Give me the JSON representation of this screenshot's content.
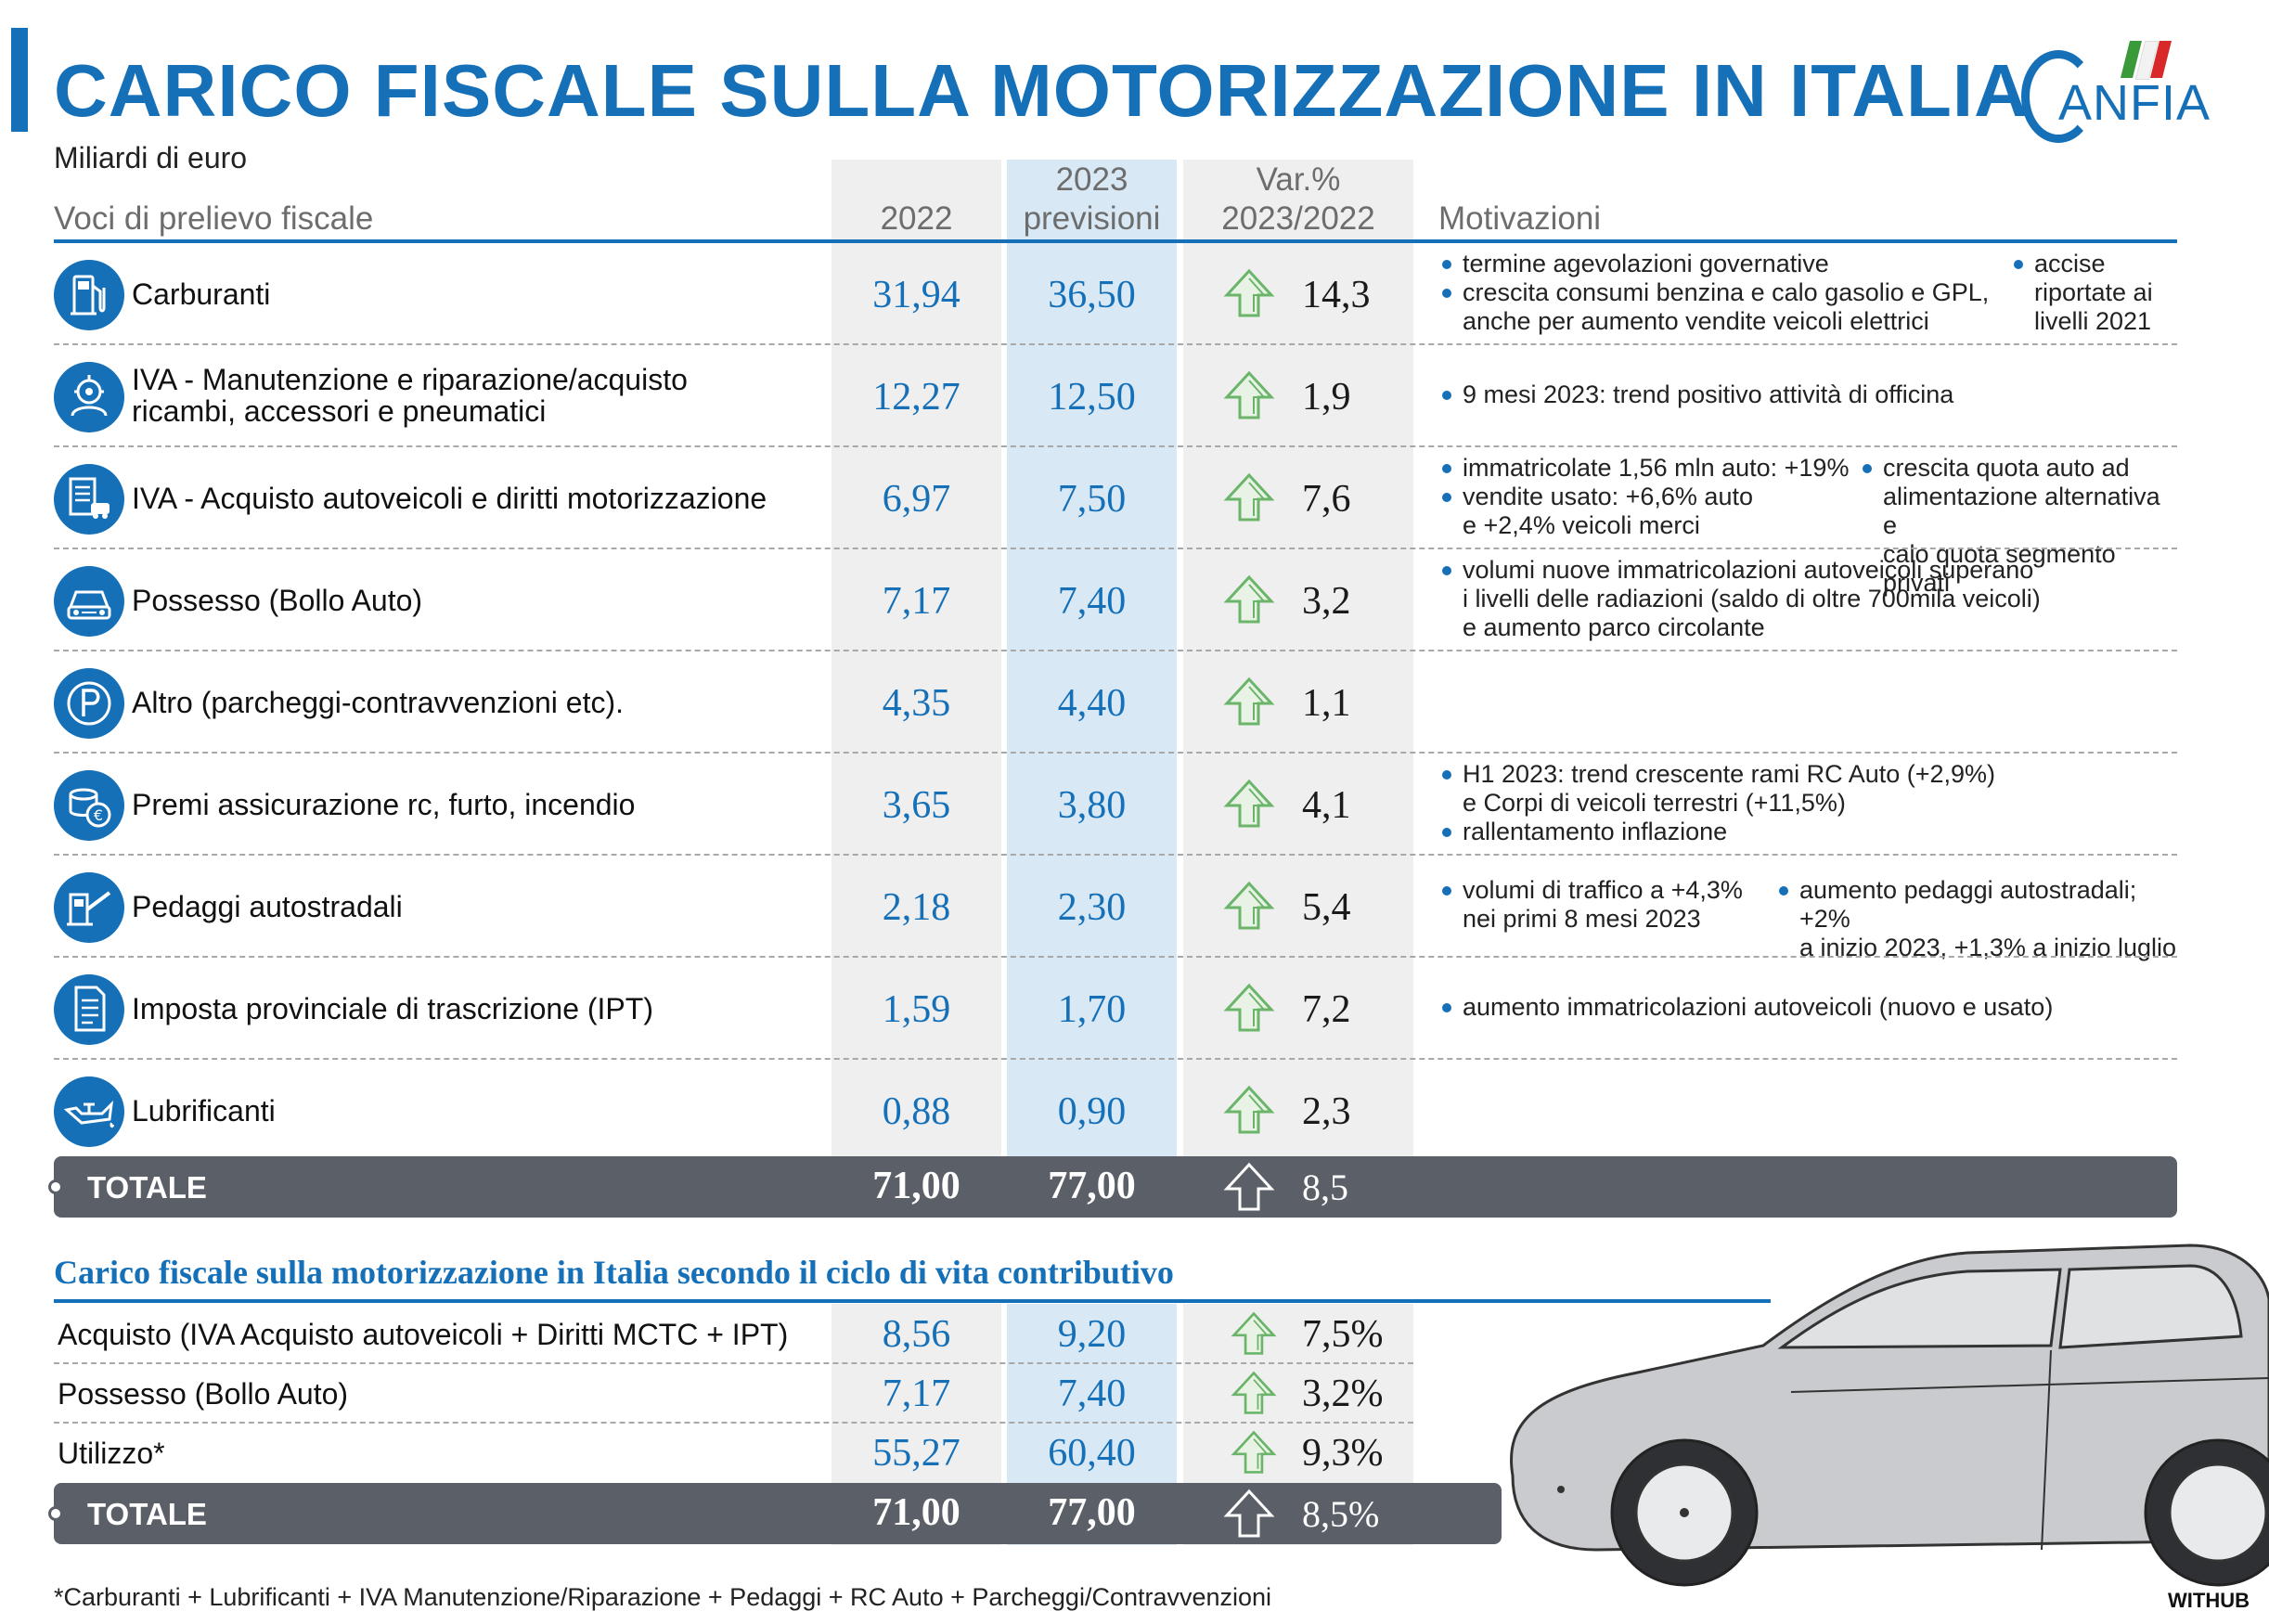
{
  "header": {
    "title": "CARICO FISCALE SULLA MOTORIZZAZIONE IN ITALIA",
    "subtitle": "Miliardi di euro",
    "logo_text": "ANFIA"
  },
  "columns": {
    "voci": "Voci di prelievo fiscale",
    "y2022": "2022",
    "y2023_line1": "2023",
    "y2023_line2": "previsioni",
    "var_line1": "Var.%",
    "var_line2": "2023/2022",
    "motivazioni": "Motivazioni"
  },
  "colors": {
    "accent": "#1570b8",
    "forecast_column": "#d8e9f5",
    "grey_column": "#efefef",
    "total_bar": "#5b6068",
    "arrow_green": "#6bb56a"
  },
  "rows": [
    {
      "icon": "fuel-pump-icon",
      "label_lines": [
        "Carburanti"
      ],
      "v2022": "31,94",
      "v2023": "36,50",
      "var": "14,3",
      "mot": [
        [
          "• termine agevolazioni governative",
          "• crescita consumi benzina e calo gasolio e GPL,",
          "anche per aumento vendite veicoli elettrici"
        ],
        [
          "• accise",
          "riportate ai",
          "livelli 2021"
        ]
      ]
    },
    {
      "icon": "mechanic-gear-icon",
      "label_lines": [
        "IVA - Manutenzione e riparazione/acquisto",
        "ricambi, accessori e pneumatici"
      ],
      "v2022": "12,27",
      "v2023": "12,50",
      "var": "1,9",
      "mot": [
        [
          "• 9 mesi 2023: trend positivo attività di officina"
        ]
      ]
    },
    {
      "icon": "dealership-document-icon",
      "label_lines": [
        "IVA - Acquisto autoveicoli e diritti motorizzazione"
      ],
      "v2022": "6,97",
      "v2023": "7,50",
      "var": "7,6",
      "mot": [
        [
          "• immatricolate 1,56 mln auto: +19%",
          "• vendite usato: +6,6% auto",
          "e +2,4% veicoli merci"
        ],
        [
          "• crescita quota auto ad",
          "alimentazione alternativa e",
          "calo quota segmento privati"
        ]
      ]
    },
    {
      "icon": "car-front-icon",
      "label_lines": [
        "Possesso (Bollo Auto)"
      ],
      "v2022": "7,17",
      "v2023": "7,40",
      "var": "3,2",
      "mot": [
        [
          "• volumi nuove immatricolazioni autoveicoli superano",
          "i livelli delle radiazioni (saldo di oltre 700mila veicoli)",
          "e aumento parco circolante"
        ]
      ]
    },
    {
      "icon": "parking-icon",
      "label_lines": [
        "Altro (parcheggi-contravvenzioni etc)."
      ],
      "v2022": "4,35",
      "v2023": "4,40",
      "var": "1,1",
      "mot": []
    },
    {
      "icon": "coins-euro-icon",
      "label_lines": [
        "Premi assicurazione rc, furto, incendio"
      ],
      "v2022": "3,65",
      "v2023": "3,80",
      "var": "4,1",
      "mot": [
        [
          "• H1 2023: trend crescente rami RC Auto (+2,9%)",
          "e Corpi di veicoli terrestri (+11,5%)",
          "• rallentamento inflazione"
        ]
      ]
    },
    {
      "icon": "toll-booth-icon",
      "label_lines": [
        "Pedaggi autostradali"
      ],
      "v2022": "2,18",
      "v2023": "2,30",
      "var": "5,4",
      "mot": [
        [
          "• volumi di traffico a +4,3%",
          "nei primi 8 mesi 2023"
        ],
        [
          "• aumento pedaggi autostradali; +2%",
          "a inizio 2023, +1,3% a inizio luglio"
        ]
      ]
    },
    {
      "icon": "document-icon",
      "label_lines": [
        "Imposta provinciale di trascrizione (IPT)"
      ],
      "v2022": "1,59",
      "v2023": "1,70",
      "var": "7,2",
      "mot": [
        [
          "• aumento immatricolazioni autoveicoli (nuovo e usato)"
        ]
      ]
    },
    {
      "icon": "oil-can-icon",
      "label_lines": [
        "Lubrificanti"
      ],
      "v2022": "0,88",
      "v2023": "0,90",
      "var": "2,3",
      "mot": []
    }
  ],
  "total": {
    "label": "TOTALE",
    "v2022": "71,00",
    "v2023": "77,00",
    "var": "8,5"
  },
  "section2": {
    "title": "Carico fiscale sulla motorizzazione in Italia secondo il ciclo di vita contributivo",
    "rows": [
      {
        "label": "Acquisto (IVA Acquisto autoveicoli + Diritti MCTC + IPT)",
        "v2022": "8,56",
        "v2023": "9,20",
        "var": "7,5%"
      },
      {
        "label": "Possesso (Bollo Auto)",
        "v2022": "7,17",
        "v2023": "7,40",
        "var": "3,2%"
      },
      {
        "label": "Utilizzo*",
        "v2022": "55,27",
        "v2023": "60,40",
        "var": "9,3%"
      }
    ],
    "total": {
      "label": "TOTALE",
      "v2022": "71,00",
      "v2023": "77,00",
      "var": "8,5%"
    }
  },
  "footnote": "*Carburanti + Lubrificanti + IVA Manutenzione/Riparazione + Pedaggi + RC Auto + Parcheggi/Contravvenzioni",
  "credit": "WITHUB",
  "chart_data": {
    "type": "table",
    "title": "CARICO FISCALE SULLA MOTORIZZAZIONE IN ITALIA",
    "subtitle": "Miliardi di euro",
    "columns": [
      "Voci di prelievo fiscale",
      "2022",
      "2023 previsioni",
      "Var.% 2023/2022"
    ],
    "categories": [
      "Carburanti",
      "IVA - Manutenzione e riparazione/acquisto ricambi, accessori e pneumatici",
      "IVA - Acquisto autoveicoli e diritti motorizzazione",
      "Possesso (Bollo Auto)",
      "Altro (parcheggi-contravvenzioni etc).",
      "Premi assicurazione rc, furto, incendio",
      "Pedaggi autostradali",
      "Imposta provinciale di trascrizione (IPT)",
      "Lubrificanti"
    ],
    "series": [
      {
        "name": "2022",
        "values": [
          31.94,
          12.27,
          6.97,
          7.17,
          4.35,
          3.65,
          2.18,
          1.59,
          0.88
        ]
      },
      {
        "name": "2023 previsioni",
        "values": [
          36.5,
          12.5,
          7.5,
          7.4,
          4.4,
          3.8,
          2.3,
          1.7,
          0.9
        ]
      },
      {
        "name": "Var.% 2023/2022",
        "values": [
          14.3,
          1.9,
          7.6,
          3.2,
          1.1,
          4.1,
          5.4,
          7.2,
          2.3
        ]
      }
    ],
    "totals": {
      "2022": 71.0,
      "2023 previsioni": 77.0,
      "Var.% 2023/2022": 8.5
    },
    "lifecycle": {
      "categories": [
        "Acquisto (IVA Acquisto autoveicoli + Diritti MCTC + IPT)",
        "Possesso (Bollo Auto)",
        "Utilizzo*"
      ],
      "series": [
        {
          "name": "2022",
          "values": [
            8.56,
            7.17,
            55.27
          ]
        },
        {
          "name": "2023 previsioni",
          "values": [
            9.2,
            7.4,
            60.4
          ]
        },
        {
          "name": "Var.% 2023/2022",
          "values": [
            7.5,
            3.2,
            9.3
          ]
        }
      ]
    }
  }
}
